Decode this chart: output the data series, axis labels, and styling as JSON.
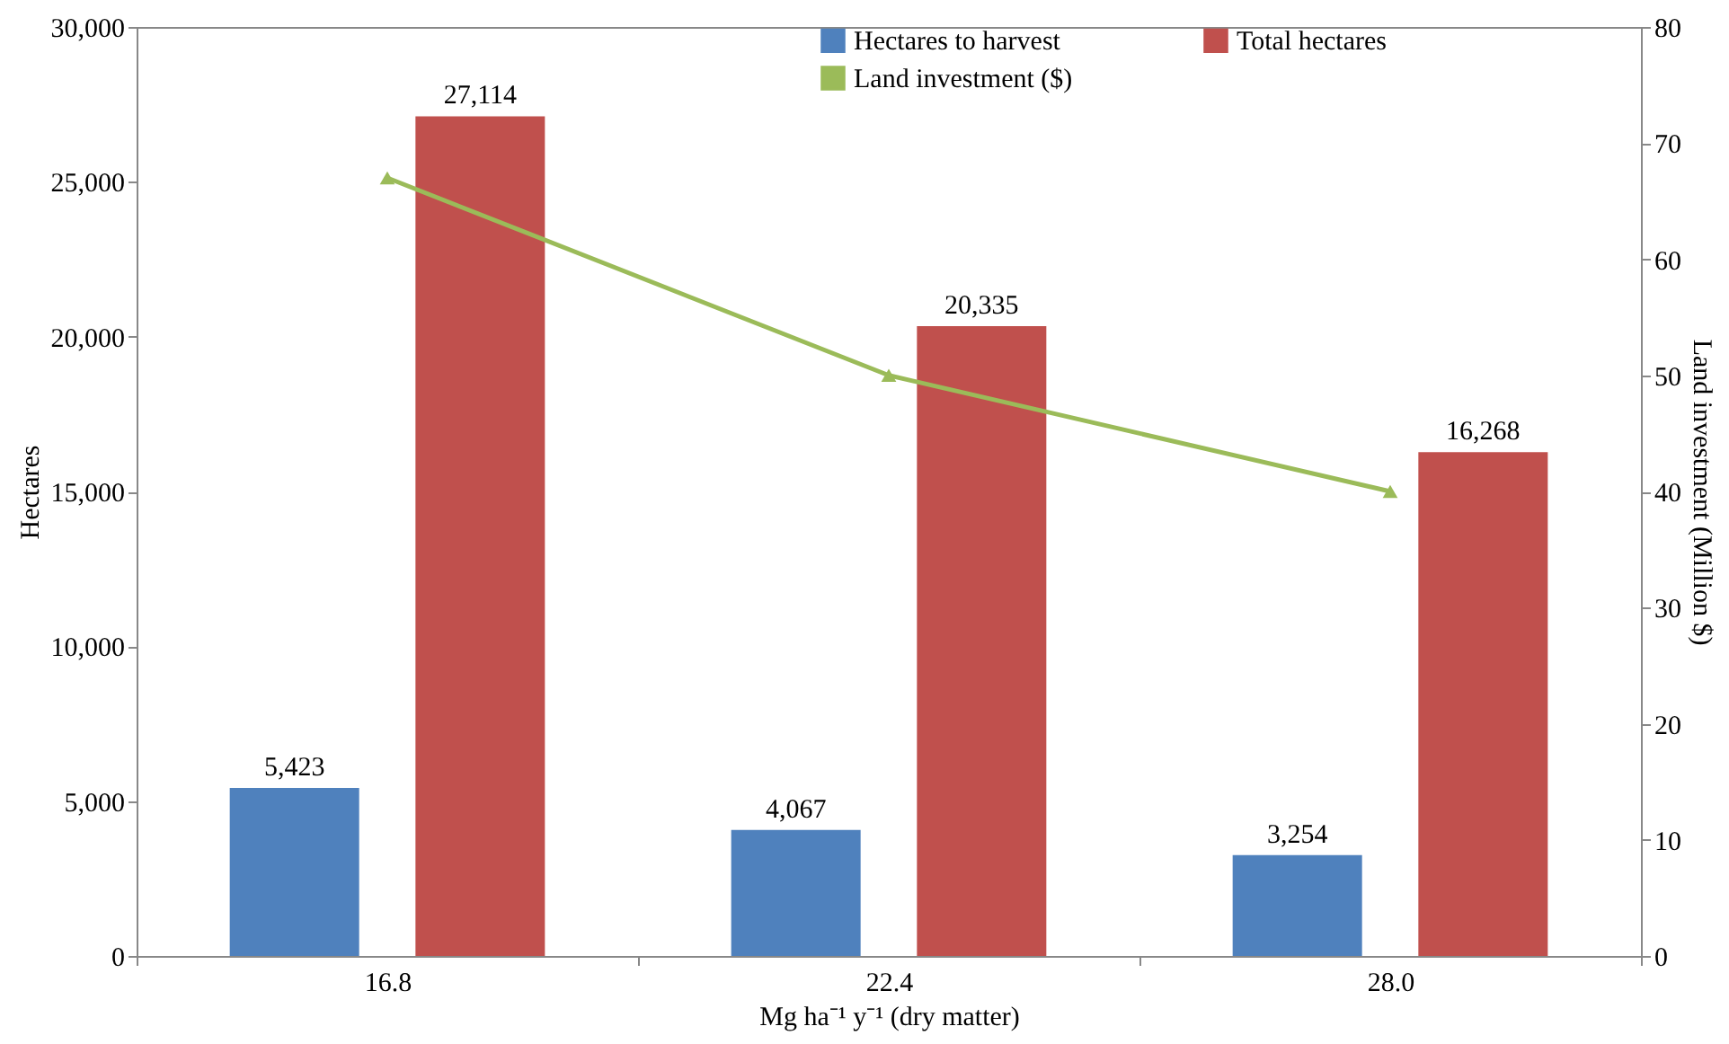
{
  "chart_data": {
    "type": "bar",
    "xlabel": "Mg ha⁻¹ y⁻¹ (dry matter)",
    "ylabel": "Hectares",
    "y2label": "Land investment (Million $)",
    "categories": [
      "16.8",
      "22.4",
      "28.0"
    ],
    "series": [
      {
        "name": "Hectares to harvest",
        "color": "#4f81bd",
        "values": [
          5423,
          4067,
          3254
        ],
        "value_labels": [
          "5,423",
          "4,067",
          "3,254"
        ]
      },
      {
        "name": "Total hectares",
        "color": "#c0504d",
        "values": [
          27114,
          20335,
          16268
        ],
        "value_labels": [
          "27,114",
          "20,335",
          "16,268"
        ]
      },
      {
        "name": "Land investment ($)",
        "color": "#9bbb59",
        "type": "line",
        "axis": "y2",
        "marker": "triangle",
        "values": [
          67,
          50,
          40
        ]
      }
    ],
    "ylim": [
      0,
      30000
    ],
    "yticks": [
      0,
      {
        "value": 5000,
        "label": "5,000"
      },
      {
        "value": 10000,
        "label": "10,000"
      },
      {
        "value": 15000,
        "label": "15,000"
      },
      {
        "value": 20000,
        "label": "20,000"
      },
      {
        "value": 25000,
        "label": "25,000"
      },
      {
        "value": 30000,
        "label": "30,000"
      }
    ],
    "y2lim": [
      0,
      80
    ],
    "y2ticks": [
      0,
      10,
      20,
      30,
      40,
      50,
      60,
      70,
      80
    ],
    "grid": false,
    "legend": "top"
  }
}
